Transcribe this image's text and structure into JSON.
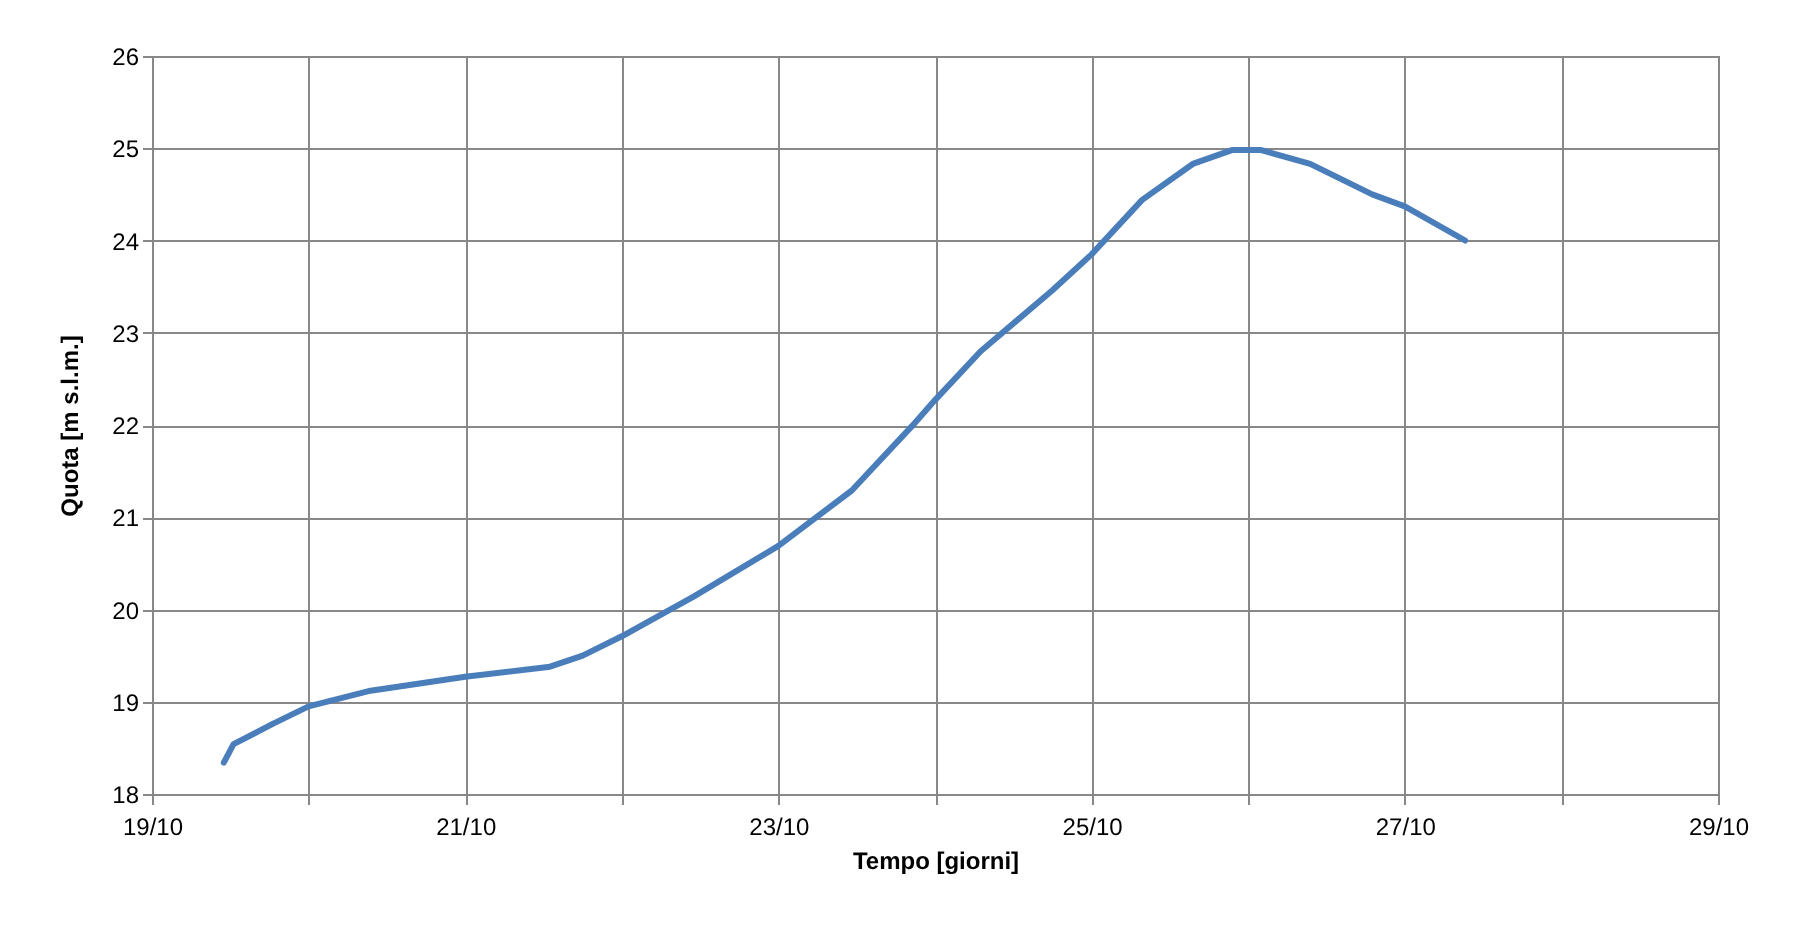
{
  "chart_data": {
    "type": "line",
    "xlabel": "Tempo [giorni]",
    "ylabel": "Quota [m s.l.m.]",
    "x": [
      "--10-19T11:00",
      "--10-19T12:30",
      "--10-19T18:30",
      "--10-20T00:00",
      "--10-20T09:30",
      "--10-21T00:00",
      "--10-21T13:00",
      "--10-21T18:00",
      "--10-22T00:00",
      "--10-22T11:00",
      "--10-23T00:00",
      "--10-23T11:15",
      "--10-23T20:30",
      "--10-24T00:00",
      "--10-24T07:00",
      "--10-24T18:00",
      "--10-25T00:00",
      "--10-25T07:45",
      "--10-25T15:30",
      "--10-25T21:30",
      "--10-26T02:00",
      "--10-26T09:30",
      "--10-26T19:00",
      "--10-27T00:00",
      "--10-27T09:15"
    ],
    "series": [
      {
        "color": "#4a7ebb",
        "values": [
          18.34,
          18.54,
          18.76,
          18.95,
          19.12,
          19.27,
          19.38,
          19.5,
          19.71,
          20.14,
          20.69,
          21.29,
          21.99,
          22.27,
          22.8,
          23.46,
          23.85,
          24.44,
          24.83,
          24.98,
          24.98,
          24.83,
          24.5,
          24.37,
          24.0
        ]
      }
    ],
    "xlim": [
      "--10-19",
      "--10-29"
    ],
    "xticks": [
      {
        "value": "--10-19",
        "label": "19/10"
      },
      {
        "value": "--10-20",
        "label": null
      },
      {
        "value": "--10-21",
        "label": "21/10"
      },
      {
        "value": "--10-22",
        "label": null
      },
      {
        "value": "--10-23",
        "label": "23/10"
      },
      {
        "value": "--10-24",
        "label": null
      },
      {
        "value": "--10-25",
        "label": "25/10"
      },
      {
        "value": "--10-26",
        "label": null
      },
      {
        "value": "--10-27",
        "label": "27/10"
      },
      {
        "value": "--10-28",
        "label": null
      },
      {
        "value": "--10-29",
        "label": "29/10"
      }
    ],
    "ylim": [
      18,
      26
    ],
    "yticks": [
      18,
      19,
      20,
      21,
      22,
      23,
      24,
      25,
      26
    ],
    "grid": true,
    "marker": "none",
    "line_style": "solid"
  }
}
